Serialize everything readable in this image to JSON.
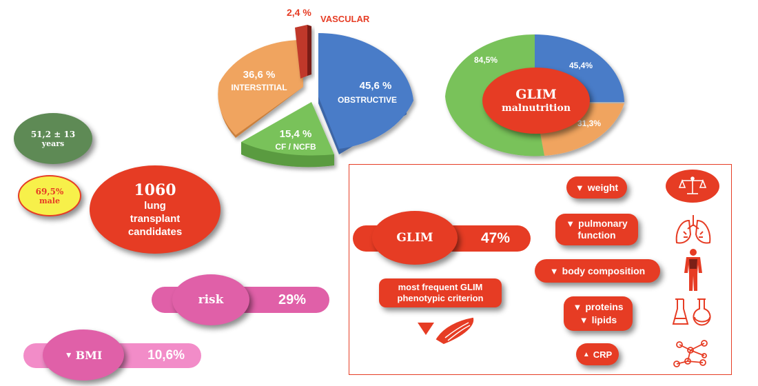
{
  "diagnosis_pie": {
    "vascular": {
      "pct": "2,4 %",
      "name": "VASCULAR"
    },
    "interstitial": {
      "pct": "36,6 %",
      "name": "INTERSTITIAL"
    },
    "obstructive": {
      "pct": "45,6 %",
      "name": "OBSTRUCTIVE"
    },
    "cf": {
      "pct": "15,4 %",
      "name": "CF / NCFB"
    }
  },
  "glim_pie": {
    "center_line1": "GLIM",
    "center_line2": "malnutrition",
    "green": "84,5%",
    "blue": "45,4%",
    "orange": "31,3%"
  },
  "age": {
    "value": "51,2 ± 13",
    "unit": "years"
  },
  "male": {
    "value": "69,5%",
    "label": "male"
  },
  "candidates": {
    "count": "1060",
    "line1": "lung",
    "line2": "transplant",
    "line3": "candidates"
  },
  "risk": {
    "label": "risk",
    "value": "29%"
  },
  "bmi": {
    "arrow": "▼",
    "label": "BMI",
    "value": "10,6%"
  },
  "glim_box": {
    "glim_label": "GLIM",
    "glim_value": "47%",
    "criterion_line1": "most frequent GLIM",
    "criterion_line2": "phenotypic criterion",
    "factors": {
      "weight": {
        "arrow": "▼",
        "label": "weight"
      },
      "pulmonary": {
        "arrow": "▼",
        "line1": "pulmonary",
        "line2": "function"
      },
      "body": {
        "arrow": "▼",
        "label": "body composition"
      },
      "proteins": {
        "arrow": "▼",
        "label": "proteins"
      },
      "lipids": {
        "arrow": "▼",
        "label": "lipids"
      },
      "crp": {
        "arrow": "▲",
        "label": "CRP"
      }
    }
  },
  "colors": {
    "red": "#e63c24",
    "blue": "#4a7bc8",
    "orange": "#f0a45e",
    "green": "#79c25a",
    "dark_green": "#5e8a55",
    "pink": "#e060a8",
    "light_pink": "#f28cc8",
    "yellow": "#f7f04a",
    "maroon": "#c0392b"
  }
}
